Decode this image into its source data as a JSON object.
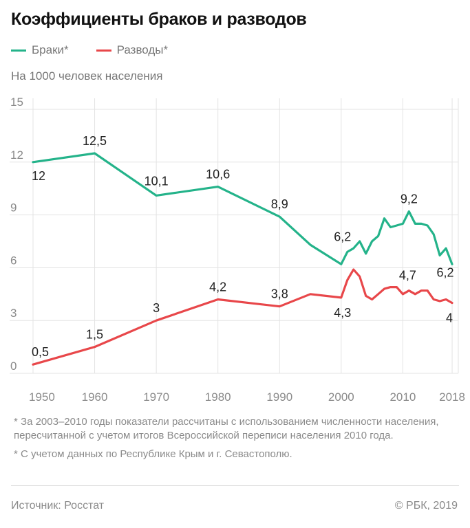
{
  "title": "Коэффициенты браков и разводов",
  "legend": [
    {
      "label": "Браки*",
      "color": "#24b38a"
    },
    {
      "label": "Разводы*",
      "color": "#e8474a"
    }
  ],
  "subtitle": "На 1000 человек населения",
  "notes": [
    "* За 2003–2010 годы показатели рассчитаны с использованием численности населения, пересчитанной с учетом итогов Всероссийской переписи населения 2010 года.",
    "* С учетом данных по Республике Крым и г. Севастополю."
  ],
  "source": "Источник: Росстат",
  "copyright": "© РБК, 2019",
  "chart_data": {
    "type": "line",
    "ylim": [
      0,
      15
    ],
    "xlim": [
      1950,
      2019
    ],
    "y_ticks": [
      "0",
      "3",
      "6",
      "9",
      "12",
      "15"
    ],
    "x_ticks": [
      "1950",
      "1960",
      "1970",
      "1980",
      "1990",
      "2000",
      "2010",
      "2018"
    ],
    "grid": true,
    "series": [
      {
        "name": "Браки*",
        "color": "#24b38a",
        "points": [
          [
            1950,
            12.0
          ],
          [
            1960,
            12.5
          ],
          [
            1970,
            10.1
          ],
          [
            1980,
            10.6
          ],
          [
            1990,
            8.9
          ],
          [
            1995,
            7.3
          ],
          [
            2000,
            6.2
          ],
          [
            2001,
            6.9
          ],
          [
            2002,
            7.1
          ],
          [
            2003,
            7.5
          ],
          [
            2004,
            6.8
          ],
          [
            2005,
            7.5
          ],
          [
            2006,
            7.8
          ],
          [
            2007,
            8.8
          ],
          [
            2008,
            8.3
          ],
          [
            2009,
            8.4
          ],
          [
            2010,
            8.5
          ],
          [
            2011,
            9.2
          ],
          [
            2012,
            8.5
          ],
          [
            2013,
            8.5
          ],
          [
            2014,
            8.4
          ],
          [
            2015,
            7.9
          ],
          [
            2016,
            6.7
          ],
          [
            2017,
            7.1
          ],
          [
            2018,
            6.2
          ]
        ],
        "labels": [
          {
            "x": 1950,
            "text": "12"
          },
          {
            "x": 1960,
            "text": "12,5"
          },
          {
            "x": 1970,
            "text": "10,1"
          },
          {
            "x": 1980,
            "text": "10,6"
          },
          {
            "x": 1990,
            "text": "8,9"
          },
          {
            "x": 2000,
            "text": "6,2"
          },
          {
            "x": 2011,
            "text": "9,2"
          },
          {
            "x": 2018,
            "text": "6,2"
          }
        ]
      },
      {
        "name": "Разводы*",
        "color": "#e8474a",
        "points": [
          [
            1950,
            0.5
          ],
          [
            1960,
            1.5
          ],
          [
            1970,
            3.0
          ],
          [
            1980,
            4.2
          ],
          [
            1990,
            3.8
          ],
          [
            1995,
            4.5
          ],
          [
            2000,
            4.3
          ],
          [
            2001,
            5.3
          ],
          [
            2002,
            5.9
          ],
          [
            2003,
            5.5
          ],
          [
            2004,
            4.4
          ],
          [
            2005,
            4.2
          ],
          [
            2006,
            4.5
          ],
          [
            2007,
            4.8
          ],
          [
            2008,
            4.9
          ],
          [
            2009,
            4.9
          ],
          [
            2010,
            4.5
          ],
          [
            2011,
            4.7
          ],
          [
            2012,
            4.5
          ],
          [
            2013,
            4.7
          ],
          [
            2014,
            4.7
          ],
          [
            2015,
            4.2
          ],
          [
            2016,
            4.1
          ],
          [
            2017,
            4.2
          ],
          [
            2018,
            4.0
          ]
        ],
        "labels": [
          {
            "x": 1950,
            "text": "0,5"
          },
          {
            "x": 1960,
            "text": "1,5"
          },
          {
            "x": 1970,
            "text": "3"
          },
          {
            "x": 1980,
            "text": "4,2"
          },
          {
            "x": 1990,
            "text": "3,8"
          },
          {
            "x": 2000,
            "text": "4,3"
          },
          {
            "x": 2011,
            "text": "4,7"
          },
          {
            "x": 2018,
            "text": "4"
          }
        ]
      }
    ]
  }
}
